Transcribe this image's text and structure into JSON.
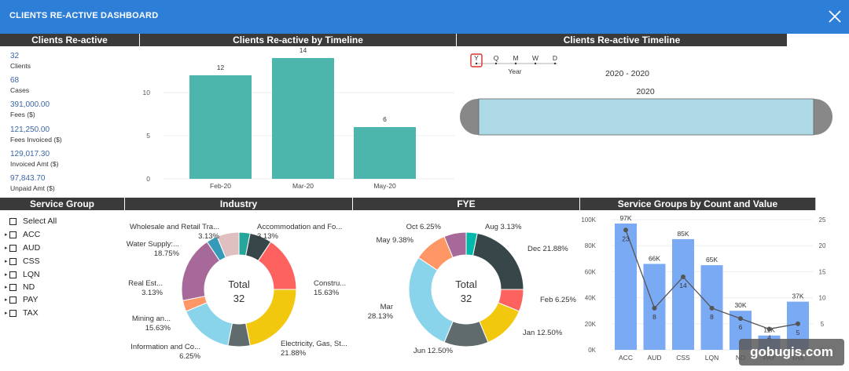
{
  "window": {
    "title": "CLIENTS RE-ACTIVE DASHBOARD"
  },
  "kpis": [
    {
      "value": "32",
      "label": "Clients"
    },
    {
      "value": "68",
      "label": "Cases"
    },
    {
      "value": "391,000.00",
      "label": "Fees ($)"
    },
    {
      "value": "121,250.00",
      "label": "Fees Invoiced ($)"
    },
    {
      "value": "129,017.30",
      "label": "Invoiced Amt ($)"
    },
    {
      "value": "97,843.70",
      "label": "Unpaid Amt ($)"
    }
  ],
  "panels": {
    "kpi_title": "Clients Re-active",
    "timeline_bar_title": "Clients Re-active by Timeline",
    "timeline_slicer_title": "Clients Re-active Timeline",
    "service_group_title": "Service Group",
    "industry_title": "Industry",
    "fye_title": "FYE",
    "combo_title": "Service Groups by Count and Value"
  },
  "slicer": {
    "granularity": [
      "Y",
      "Q",
      "M",
      "W",
      "D"
    ],
    "selected": "Y",
    "granularity_label": "Year",
    "range_label": "2020 - 2020",
    "year_label": "2020"
  },
  "service_group": {
    "items": [
      "Select All",
      "ACC",
      "AUD",
      "CSS",
      "LQN",
      "ND",
      "PAY",
      "TAX"
    ]
  },
  "colors": {
    "header_bg": "#2d7ed6",
    "bar_teal": "#4cb6ac",
    "combo_bar": "#7baaf5",
    "slicer_fill": "#add8e6"
  },
  "watermark": "gobugis.com",
  "chart_data": [
    {
      "type": "bar",
      "title": "Clients Re-active by Timeline",
      "categories": [
        "Feb-20",
        "Mar-20",
        "May-20"
      ],
      "values": [
        12,
        14,
        6
      ],
      "yticks": [
        0,
        5,
        10
      ],
      "ylim": [
        0,
        15
      ]
    },
    {
      "type": "pie",
      "title": "Industry",
      "center_label": "Total",
      "center_value": "32",
      "slices": [
        {
          "label": "Accommodation and Fo...",
          "pct": "3.13%",
          "value": 3.13,
          "color": "#26a69a"
        },
        {
          "label": "",
          "pct": "",
          "value": 6.25,
          "color": "#374649"
        },
        {
          "label": "Constru...",
          "pct": "15.63%",
          "value": 15.63,
          "color": "#fd625e"
        },
        {
          "label": "Electricity, Gas, St...",
          "pct": "21.88%",
          "value": 21.88,
          "color": "#f2c80f"
        },
        {
          "label": "Information and Co...",
          "pct": "6.25%",
          "value": 6.25,
          "color": "#5f6b6d"
        },
        {
          "label": "Mining an...",
          "pct": "15.63%",
          "value": 15.63,
          "color": "#8ad4eb"
        },
        {
          "label": "Real Est...",
          "pct": "3.13%",
          "value": 3.13,
          "color": "#fe9666"
        },
        {
          "label": "Water Supply:...",
          "pct": "18.75%",
          "value": 18.75,
          "color": "#a66999"
        },
        {
          "label": "Wholesale and Retail Tra...",
          "pct": "3.13%",
          "value": 3.13,
          "color": "#3599b8"
        },
        {
          "label": "",
          "pct": "",
          "value": 6.26,
          "color": "#dfbfbf"
        }
      ]
    },
    {
      "type": "pie",
      "title": "FYE",
      "center_label": "Total",
      "center_value": "32",
      "slices": [
        {
          "label": "Aug",
          "pct": "3.13%",
          "value": 3.13,
          "color": "#01b8aa"
        },
        {
          "label": "Dec",
          "pct": "21.88%",
          "value": 21.88,
          "color": "#374649"
        },
        {
          "label": "Feb",
          "pct": "6.25%",
          "value": 6.25,
          "color": "#fd625e"
        },
        {
          "label": "Jan",
          "pct": "12.50%",
          "value": 12.5,
          "color": "#f2c80f"
        },
        {
          "label": "Jun",
          "pct": "12.50%",
          "value": 12.5,
          "color": "#5f6b6d"
        },
        {
          "label": "Mar",
          "pct": "28.13%",
          "value": 28.13,
          "color": "#8ad4eb"
        },
        {
          "label": "May",
          "pct": "9.38%",
          "value": 9.38,
          "color": "#fe9666"
        },
        {
          "label": "Oct",
          "pct": "6.25%",
          "value": 6.25,
          "color": "#a66999"
        }
      ]
    },
    {
      "type": "bar",
      "title": "Service Groups by Count and Value",
      "categories": [
        "ACC",
        "AUD",
        "CSS",
        "LQN",
        "ND",
        "PAY",
        "TAX"
      ],
      "bar_values": [
        97000,
        66000,
        85000,
        65000,
        30000,
        11000,
        37000
      ],
      "bar_labels": [
        "97K",
        "66K",
        "85K",
        "65K",
        "30K",
        "11K",
        "37K"
      ],
      "line_values": [
        23,
        8,
        14,
        8,
        6,
        4,
        5
      ],
      "left_ticks": [
        "0K",
        "20K",
        "40K",
        "60K",
        "80K",
        "100K"
      ],
      "left_ylim": [
        0,
        100000
      ],
      "right_ticks": [
        0,
        5,
        10,
        15,
        20,
        25
      ],
      "right_ylim": [
        0,
        25
      ]
    }
  ]
}
